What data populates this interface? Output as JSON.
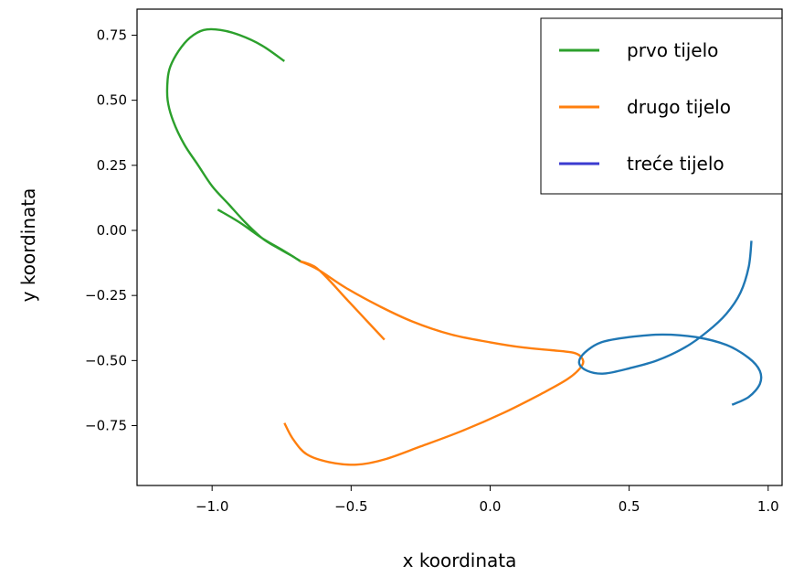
{
  "chart_data": {
    "type": "line",
    "xlabel": "x koordinata",
    "ylabel": "y koordinata",
    "xlim": [
      -1.27,
      1.05
    ],
    "ylim": [
      -0.98,
      0.85
    ],
    "xticks": [
      -1.0,
      -0.5,
      0.0,
      0.5,
      1.0
    ],
    "xtick_labels": [
      "−1.0",
      "−0.5",
      "0.0",
      "0.5",
      "1.0"
    ],
    "yticks": [
      0.75,
      0.5,
      0.25,
      0.0,
      -0.25,
      -0.5,
      -0.75
    ],
    "ytick_labels": [
      "0.75",
      "0.50",
      "0.25",
      "0.00",
      "−0.25",
      "−0.50",
      "−0.75"
    ],
    "grid": false,
    "legend_position": "top-right",
    "legend": [
      {
        "label": "prvo tijelo",
        "color": "#2ca02c"
      },
      {
        "label": "drugo tijelo",
        "color": "#ff7f0e"
      },
      {
        "label": "treće tijelo",
        "color": "#3b3bd0"
      }
    ],
    "series": [
      {
        "color": "#2ca02c",
        "x": [
          -0.74,
          -0.82,
          -0.9,
          -0.97,
          -1.03,
          -1.08,
          -1.12,
          -1.15,
          -1.16,
          -1.16,
          -1.14,
          -1.1,
          -1.05,
          -1.0,
          -0.94,
          -0.88,
          -0.82,
          -0.76,
          -0.71,
          -0.68,
          -0.74,
          -0.82,
          -0.9,
          -0.98
        ],
        "y": [
          0.65,
          0.71,
          0.75,
          0.77,
          0.77,
          0.74,
          0.69,
          0.63,
          0.58,
          0.5,
          0.42,
          0.33,
          0.25,
          0.17,
          0.1,
          0.03,
          -0.03,
          -0.07,
          -0.1,
          -0.12,
          -0.08,
          -0.03,
          0.03,
          0.08
        ]
      },
      {
        "color": "#ff7f0e",
        "x": [
          -0.38,
          -0.45,
          -0.52,
          -0.58,
          -0.63,
          -0.68,
          -0.62,
          -0.52,
          -0.4,
          -0.28,
          -0.14,
          0.0,
          0.12,
          0.22,
          0.3,
          0.33,
          0.33,
          0.28,
          0.18,
          0.05,
          -0.1,
          -0.25,
          -0.38,
          -0.48,
          -0.58,
          -0.66,
          -0.71,
          -0.74
        ],
        "y": [
          -0.42,
          -0.34,
          -0.26,
          -0.19,
          -0.14,
          -0.12,
          -0.15,
          -0.22,
          -0.29,
          -0.35,
          -0.4,
          -0.43,
          -0.45,
          -0.46,
          -0.47,
          -0.49,
          -0.52,
          -0.57,
          -0.63,
          -0.7,
          -0.77,
          -0.83,
          -0.88,
          -0.9,
          -0.89,
          -0.86,
          -0.8,
          -0.74
        ]
      },
      {
        "color": "#1f77b4",
        "x": [
          0.94,
          0.93,
          0.9,
          0.85,
          0.78,
          0.7,
          0.6,
          0.5,
          0.41,
          0.35,
          0.32,
          0.34,
          0.4,
          0.5,
          0.62,
          0.74,
          0.85,
          0.93,
          0.97,
          0.97,
          0.93,
          0.87
        ],
        "y": [
          -0.04,
          -0.14,
          -0.24,
          -0.32,
          -0.39,
          -0.45,
          -0.5,
          -0.53,
          -0.55,
          -0.54,
          -0.51,
          -0.47,
          -0.43,
          -0.41,
          -0.4,
          -0.41,
          -0.44,
          -0.49,
          -0.54,
          -0.59,
          -0.64,
          -0.67
        ]
      }
    ]
  }
}
